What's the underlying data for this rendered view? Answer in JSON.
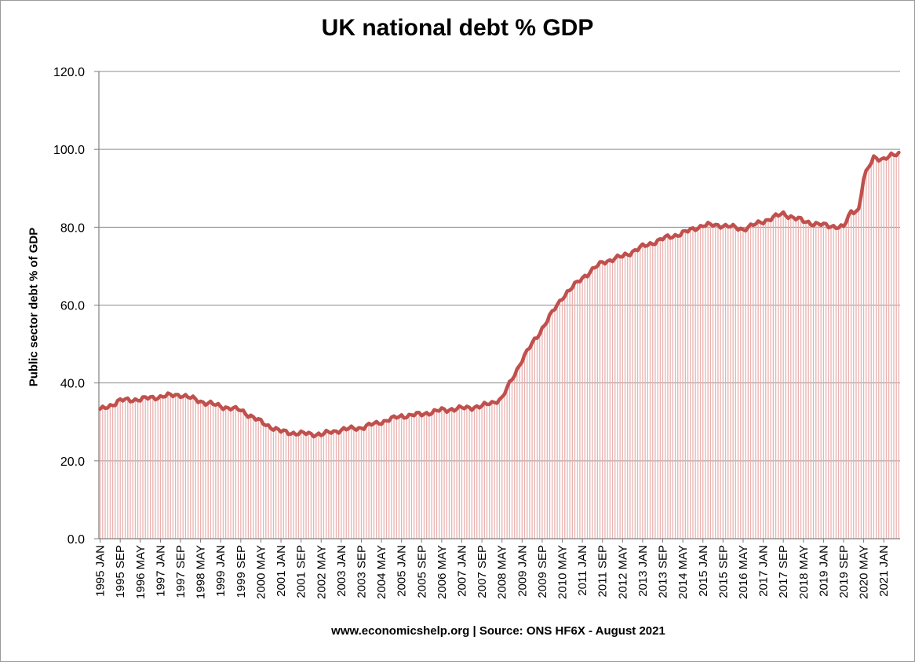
{
  "chart_data": {
    "type": "area",
    "title": "UK national debt % GDP",
    "ylabel": "Public sector debt % of GDP",
    "xlabel": "",
    "footer": "www.economicshelp.org | Source: ONS HF6X - August 2021",
    "ylim": [
      0,
      120
    ],
    "yticks": [
      "0.0",
      "20.0",
      "40.0",
      "60.0",
      "80.0",
      "100.0",
      "120.0"
    ],
    "grid": true,
    "legend": "none",
    "x_start": "1995 JAN",
    "x_end": "2021 JUL",
    "x_interval_months": 1,
    "x_tick_labels": [
      "1995 JAN",
      "1995 SEP",
      "1996 MAY",
      "1997 JAN",
      "1997 SEP",
      "1998 MAY",
      "1999 JAN",
      "1999 SEP",
      "2000 MAY",
      "2001 JAN",
      "2001 SEP",
      "2002 MAY",
      "2003 JAN",
      "2003 SEP",
      "2004 MAY",
      "2005 JAN",
      "2005 SEP",
      "2006 MAY",
      "2007 JAN",
      "2007 SEP",
      "2008 MAY",
      "2009 JAN",
      "2009 SEP",
      "2010 MAY",
      "2011 JAN",
      "2011 SEP",
      "2012 MAY",
      "2013 JAN",
      "2013 SEP",
      "2014 MAY",
      "2015 JAN",
      "2015 SEP",
      "2016 MAY",
      "2017 JAN",
      "2017 SEP",
      "2018 MAY",
      "2019 JAN",
      "2019 SEP",
      "2020 MAY",
      "2021 JAN"
    ],
    "anchors": [
      {
        "x": "1995 JAN",
        "y": 33.0
      },
      {
        "x": "1995 SEP",
        "y": 35.5
      },
      {
        "x": "1996 MAY",
        "y": 35.8
      },
      {
        "x": "1997 JAN",
        "y": 36.5
      },
      {
        "x": "1997 SEP",
        "y": 37.0
      },
      {
        "x": "1998 MAY",
        "y": 35.3
      },
      {
        "x": "1999 JAN",
        "y": 34.0
      },
      {
        "x": "1999 SEP",
        "y": 33.0
      },
      {
        "x": "2000 MAY",
        "y": 30.0
      },
      {
        "x": "2001 JAN",
        "y": 27.5
      },
      {
        "x": "2001 SEP",
        "y": 27.0
      },
      {
        "x": "2002 MAY",
        "y": 26.8
      },
      {
        "x": "2003 JAN",
        "y": 28.0
      },
      {
        "x": "2003 SEP",
        "y": 28.5
      },
      {
        "x": "2004 MAY",
        "y": 30.0
      },
      {
        "x": "2005 JAN",
        "y": 31.5
      },
      {
        "x": "2005 SEP",
        "y": 32.0
      },
      {
        "x": "2006 MAY",
        "y": 33.0
      },
      {
        "x": "2007 JAN",
        "y": 33.5
      },
      {
        "x": "2007 SEP",
        "y": 34.0
      },
      {
        "x": "2008 MAY",
        "y": 36.0
      },
      {
        "x": "2009 JAN",
        "y": 46.0
      },
      {
        "x": "2009 SEP",
        "y": 54.0
      },
      {
        "x": "2010 MAY",
        "y": 62.0
      },
      {
        "x": "2011 JAN",
        "y": 67.0
      },
      {
        "x": "2011 SEP",
        "y": 71.0
      },
      {
        "x": "2012 MAY",
        "y": 72.5
      },
      {
        "x": "2013 JAN",
        "y": 75.0
      },
      {
        "x": "2013 SEP",
        "y": 77.0
      },
      {
        "x": "2014 MAY",
        "y": 78.5
      },
      {
        "x": "2015 JAN",
        "y": 80.5
      },
      {
        "x": "2015 SEP",
        "y": 80.5
      },
      {
        "x": "2016 MAY",
        "y": 79.5
      },
      {
        "x": "2017 JAN",
        "y": 81.5
      },
      {
        "x": "2017 SEP",
        "y": 83.5
      },
      {
        "x": "2018 MAY",
        "y": 81.5
      },
      {
        "x": "2019 JAN",
        "y": 80.5
      },
      {
        "x": "2019 SEP",
        "y": 80.0
      },
      {
        "x": "2019 DEC",
        "y": 84.0
      },
      {
        "x": "2020 MAR",
        "y": 84.5
      },
      {
        "x": "2020 MAY",
        "y": 92.5
      },
      {
        "x": "2020 SEP",
        "y": 98.0
      },
      {
        "x": "2021 JAN",
        "y": 97.5
      },
      {
        "x": "2021 JUL",
        "y": 99.0
      }
    ]
  },
  "colors": {
    "line": "#c0504d",
    "fill": "#e9b2b0",
    "grid": "#8c8c8c",
    "axis": "#7f7f7f"
  }
}
